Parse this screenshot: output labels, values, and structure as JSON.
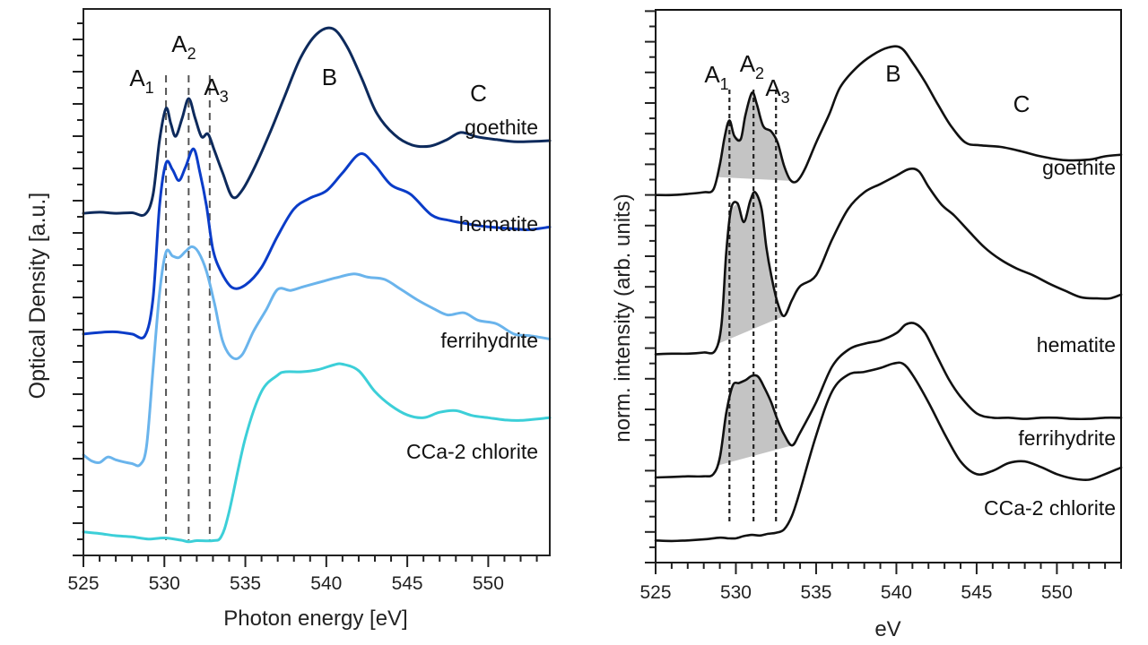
{
  "chart_data": [
    {
      "type": "line",
      "panel": "left",
      "xlabel": "Photon energy [eV]",
      "ylabel": "Optical Density [a.u.]",
      "xlim": [
        525,
        553.8
      ],
      "ylim": [
        0,
        1
      ],
      "xticks": [
        525,
        530,
        535,
        540,
        545,
        550
      ],
      "grid": false,
      "peak_labels": [
        {
          "main": "A",
          "sub": "1",
          "x": 528.6
        },
        {
          "main": "A",
          "sub": "2",
          "x": 531.2
        },
        {
          "main": "A",
          "sub": "3",
          "x": 533.2
        },
        {
          "main": "B",
          "x": 540.2
        },
        {
          "main": "C",
          "x": 549.4
        }
      ],
      "dashed_lines_x": [
        530.1,
        531.5,
        532.8
      ],
      "series": [
        {
          "name": "goethite",
          "color": "#0d2a5c",
          "x": [
            525,
            526,
            527,
            528,
            528.8,
            529.3,
            529.7,
            530.1,
            530.4,
            530.7,
            531.1,
            531.5,
            531.9,
            532.3,
            532.7,
            533.1,
            533.6,
            534.2,
            534.8,
            535.6,
            536.5,
            537.4,
            538.4,
            539.4,
            540.4,
            541.3,
            542.2,
            543.1,
            544.2,
            545.3,
            546.4,
            547.4,
            548.3,
            549.3,
            550.5,
            551.8,
            553.8
          ],
          "y": [
            0.626,
            0.628,
            0.626,
            0.627,
            0.624,
            0.66,
            0.76,
            0.818,
            0.79,
            0.767,
            0.8,
            0.836,
            0.8,
            0.766,
            0.771,
            0.74,
            0.7,
            0.656,
            0.668,
            0.712,
            0.772,
            0.838,
            0.91,
            0.954,
            0.964,
            0.93,
            0.872,
            0.81,
            0.77,
            0.751,
            0.749,
            0.76,
            0.774,
            0.766,
            0.761,
            0.757,
            0.759
          ]
        },
        {
          "name": "hematite",
          "color": "#0a3cc8",
          "x": [
            525,
            526,
            527,
            528,
            528.8,
            529.3,
            529.7,
            530.1,
            530.5,
            530.9,
            531.3,
            531.8,
            532.2,
            532.6,
            533.0,
            533.5,
            534.2,
            535.0,
            536.0,
            537.0,
            538.0,
            539.0,
            540.0,
            541.0,
            542.1,
            543.0,
            544.0,
            545.2,
            546.5,
            547.6,
            548.5,
            549.5,
            550.5,
            551.5,
            552.5,
            553.8
          ],
          "y": [
            0.405,
            0.408,
            0.409,
            0.405,
            0.402,
            0.47,
            0.64,
            0.718,
            0.706,
            0.686,
            0.71,
            0.744,
            0.7,
            0.64,
            0.56,
            0.519,
            0.49,
            0.495,
            0.527,
            0.585,
            0.634,
            0.654,
            0.667,
            0.7,
            0.735,
            0.714,
            0.678,
            0.661,
            0.623,
            0.613,
            0.608,
            0.603,
            0.6,
            0.598,
            0.596,
            0.601
          ]
        },
        {
          "name": "ferrihydrite",
          "color": "#6ab4ec",
          "x": [
            525,
            525.5,
            526,
            526.5,
            527,
            527.5,
            528,
            528.5,
            528.9,
            529.3,
            529.7,
            530.1,
            530.5,
            530.9,
            531.3,
            531.7,
            532.1,
            532.6,
            533.1,
            533.6,
            534.2,
            534.8,
            535.5,
            536.3,
            537.0,
            537.8,
            538.6,
            539.6,
            540.6,
            541.7,
            542.6,
            543.6,
            544.6,
            545.6,
            546.6,
            547.5,
            548.5,
            549.4,
            550.5,
            551.6,
            552.6,
            553.8
          ],
          "y": [
            0.184,
            0.173,
            0.17,
            0.18,
            0.175,
            0.171,
            0.168,
            0.166,
            0.2,
            0.34,
            0.48,
            0.555,
            0.548,
            0.545,
            0.556,
            0.565,
            0.555,
            0.52,
            0.46,
            0.392,
            0.362,
            0.367,
            0.41,
            0.45,
            0.487,
            0.485,
            0.492,
            0.5,
            0.508,
            0.515,
            0.509,
            0.505,
            0.487,
            0.468,
            0.452,
            0.44,
            0.444,
            0.43,
            0.424,
            0.405,
            0.402,
            0.396
          ]
        },
        {
          "name": "CCa-2 chlorite",
          "color": "#3ccfd8",
          "x": [
            525,
            526,
            527,
            528,
            529,
            530,
            531,
            531.5,
            532,
            533,
            533.5,
            534,
            535,
            536,
            537,
            537.5,
            538.5,
            539.5,
            540.5,
            541,
            542,
            543,
            544,
            545,
            546,
            547,
            548,
            549,
            550,
            551,
            552,
            553.8
          ],
          "y": [
            0.043,
            0.04,
            0.036,
            0.034,
            0.03,
            0.032,
            0.028,
            0.025,
            0.027,
            0.027,
            0.034,
            0.08,
            0.215,
            0.3,
            0.33,
            0.336,
            0.336,
            0.34,
            0.349,
            0.35,
            0.338,
            0.3,
            0.274,
            0.257,
            0.252,
            0.262,
            0.265,
            0.256,
            0.252,
            0.248,
            0.247,
            0.252
          ]
        }
      ]
    },
    {
      "type": "line",
      "panel": "right",
      "xlabel": "eV",
      "ylabel": "norm. intensity (arb. units)",
      "xlim": [
        525,
        554
      ],
      "ylim": [
        0,
        1
      ],
      "xticks": [
        525,
        530,
        535,
        540,
        545,
        550
      ],
      "grid": false,
      "peak_labels": [
        {
          "main": "A",
          "sub": "1",
          "x": 528.8
        },
        {
          "main": "A",
          "sub": "2",
          "x": 531.0
        },
        {
          "main": "A",
          "sub": "3",
          "x": 532.6
        },
        {
          "main": "B",
          "x": 539.8
        },
        {
          "main": "C",
          "x": 547.8
        }
      ],
      "dashed_lines_x": [
        529.6,
        531.1,
        532.5
      ],
      "shaded_a_peaks": true,
      "series": [
        {
          "name": "goethite",
          "color": "#111111",
          "x": [
            525,
            526,
            527,
            528,
            528.6,
            529,
            529.3,
            529.6,
            529.9,
            530.3,
            530.6,
            531.0,
            531.3,
            531.7,
            532.2,
            532.6,
            533.0,
            533.4,
            533.8,
            534.3,
            535.0,
            535.8,
            536.5,
            537.5,
            538.5,
            539.5,
            540.3,
            541.0,
            541.8,
            542.6,
            543.4,
            544.3,
            545.2,
            546.5,
            547.8,
            549.0,
            550.5,
            552.0,
            553.0,
            554.0
          ],
          "y": [
            0.665,
            0.665,
            0.667,
            0.67,
            0.675,
            0.72,
            0.77,
            0.8,
            0.772,
            0.766,
            0.81,
            0.85,
            0.83,
            0.79,
            0.78,
            0.76,
            0.718,
            0.692,
            0.69,
            0.712,
            0.76,
            0.81,
            0.86,
            0.895,
            0.918,
            0.932,
            0.931,
            0.905,
            0.869,
            0.828,
            0.79,
            0.76,
            0.755,
            0.752,
            0.744,
            0.735,
            0.728,
            0.729,
            0.735,
            0.738
          ]
        },
        {
          "name": "hematite",
          "color": "#111111",
          "x": [
            525,
            526,
            527,
            528,
            528.7,
            529.1,
            529.4,
            529.7,
            530.1,
            530.5,
            530.9,
            531.2,
            531.6,
            531.9,
            532.2,
            532.6,
            533.0,
            533.5,
            534.0,
            535.0,
            536.0,
            537.0,
            538.0,
            539.0,
            540.0,
            540.8,
            541.4,
            542.0,
            542.8,
            543.6,
            544.5,
            545.5,
            546.5,
            547.5,
            548.5,
            549.5,
            550.5,
            551.5,
            552.5,
            553.3,
            554.0
          ],
          "y": [
            0.377,
            0.378,
            0.378,
            0.38,
            0.383,
            0.43,
            0.56,
            0.64,
            0.65,
            0.616,
            0.655,
            0.67,
            0.64,
            0.57,
            0.52,
            0.47,
            0.446,
            0.475,
            0.5,
            0.52,
            0.585,
            0.64,
            0.67,
            0.685,
            0.7,
            0.712,
            0.708,
            0.68,
            0.648,
            0.628,
            0.6,
            0.57,
            0.548,
            0.532,
            0.52,
            0.505,
            0.492,
            0.48,
            0.478,
            0.478,
            0.485
          ]
        },
        {
          "name": "ferrihydrite",
          "color": "#111111",
          "x": [
            525,
            526,
            527,
            528,
            528.6,
            529.0,
            529.4,
            529.8,
            530.2,
            530.6,
            531.0,
            531.4,
            531.8,
            532.2,
            532.6,
            533.0,
            533.5,
            534.0,
            535.0,
            536.0,
            537.0,
            538.0,
            539.0,
            540.0,
            540.6,
            541.2,
            541.8,
            542.5,
            543.3,
            544.0,
            545.0,
            546.0,
            547.0,
            548.0,
            549.0,
            550.0,
            551.0,
            552.0,
            553.0,
            554.0
          ],
          "y": [
            0.154,
            0.155,
            0.156,
            0.156,
            0.16,
            0.19,
            0.27,
            0.32,
            0.325,
            0.33,
            0.338,
            0.336,
            0.315,
            0.29,
            0.258,
            0.232,
            0.212,
            0.235,
            0.29,
            0.355,
            0.385,
            0.396,
            0.402,
            0.415,
            0.431,
            0.432,
            0.415,
            0.375,
            0.33,
            0.3,
            0.27,
            0.262,
            0.262,
            0.26,
            0.262,
            0.262,
            0.26,
            0.26,
            0.262,
            0.262
          ]
        },
        {
          "name": "CCa-2 chlorite",
          "color": "#111111",
          "x": [
            525,
            526,
            527,
            528,
            529,
            529.5,
            530,
            530.5,
            531,
            531.5,
            532,
            532.5,
            533,
            533.5,
            534,
            535,
            536,
            537,
            538,
            539,
            539.8,
            540.4,
            541,
            542,
            543,
            544,
            545,
            546,
            547,
            548,
            549,
            550,
            551,
            552,
            553,
            554
          ],
          "y": [
            0.04,
            0.039,
            0.04,
            0.042,
            0.045,
            0.044,
            0.044,
            0.048,
            0.05,
            0.049,
            0.052,
            0.054,
            0.06,
            0.085,
            0.13,
            0.23,
            0.31,
            0.34,
            0.345,
            0.352,
            0.36,
            0.36,
            0.34,
            0.29,
            0.233,
            0.183,
            0.16,
            0.166,
            0.18,
            0.183,
            0.173,
            0.16,
            0.152,
            0.15,
            0.16,
            0.172
          ]
        }
      ]
    }
  ]
}
